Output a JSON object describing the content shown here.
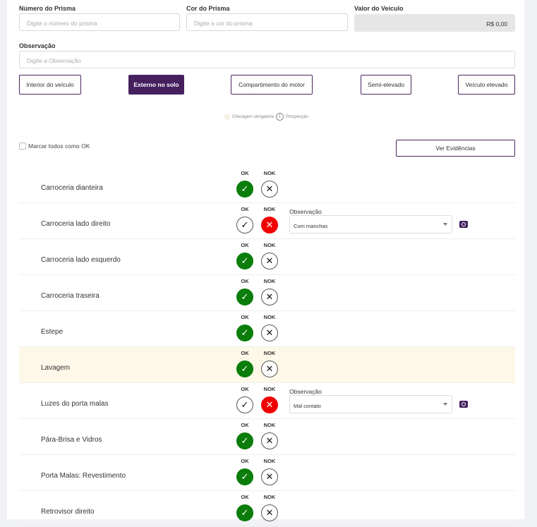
{
  "form": {
    "prism_number": {
      "label": "Número do Prisma",
      "placeholder": "Digite o número do prisma"
    },
    "prism_color": {
      "label": "Cor do Prisma",
      "placeholder": "Digite a cor do prisma"
    },
    "vehicle_value": {
      "label": "Valor do Veículo",
      "value": "R$ 0,00"
    },
    "observation": {
      "label": "Observação",
      "placeholder": "Digite a Observação"
    }
  },
  "tabs": [
    {
      "label": "Interior do veículo",
      "active": false
    },
    {
      "label": "Externo no solo",
      "active": true
    },
    {
      "label": "Compartimento do motor",
      "active": false
    },
    {
      "label": "Semi-elevado",
      "active": false
    },
    {
      "label": "Veículo elevado",
      "active": false
    }
  ],
  "legend": {
    "mandatory": "Checagem obrigatória",
    "prospect": "Prospecção",
    "info_icon": "i"
  },
  "mark_all_ok": "Marcar todos como OK",
  "view_evidence": "Ver Evidências",
  "col_ok": "OK",
  "col_nok": "NOK",
  "obs_label": "Observação",
  "colors": {
    "primary": "#45205f",
    "ok": "#0a7d0a",
    "nok": "#f00000",
    "highlight": "#fdf8e7"
  },
  "items": [
    {
      "name": "Carroceria dianteira",
      "status": "ok"
    },
    {
      "name": "Carroceria lado direito",
      "status": "nok",
      "observation": "Com manchas"
    },
    {
      "name": "Carroceria lado esquerdo",
      "status": "ok"
    },
    {
      "name": "Carroceria traseira",
      "status": "ok"
    },
    {
      "name": "Estepe",
      "status": "ok"
    },
    {
      "name": "Lavagem",
      "status": "ok",
      "highlight": true
    },
    {
      "name": "Luzes do porta malas",
      "status": "nok",
      "observation": "Mal contato"
    },
    {
      "name": "Pára-Brisa e Vidros",
      "status": "ok"
    },
    {
      "name": "Porta Malas: Revestimento",
      "status": "ok"
    },
    {
      "name": "Retrovisor direito",
      "status": "ok"
    }
  ]
}
